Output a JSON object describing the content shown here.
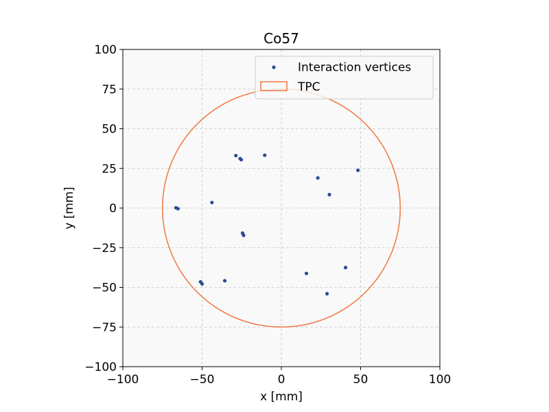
{
  "chart_data": {
    "type": "scatter",
    "title": "Co57",
    "xlabel": "x [mm]",
    "ylabel": "y [mm]",
    "xlim": [
      -100,
      100
    ],
    "ylim": [
      -100,
      100
    ],
    "xticks": [
      -100,
      -50,
      0,
      50,
      100
    ],
    "yticks": [
      -100,
      -75,
      -50,
      -25,
      0,
      25,
      50,
      75,
      100
    ],
    "xtick_labels": [
      "−100",
      "−50",
      "0",
      "50",
      "100"
    ],
    "ytick_labels": [
      "−100",
      "−75",
      "−50",
      "−25",
      "0",
      "25",
      "50",
      "75",
      "100"
    ],
    "grid": true,
    "legend_position": "top-right",
    "series": [
      {
        "name": "Interaction vertices",
        "kind": "scatter",
        "color": "#2e4a94",
        "points": [
          [
            -66.5,
            0.2
          ],
          [
            -65.2,
            -0.4
          ],
          [
            -43.8,
            3.5
          ],
          [
            -28.7,
            33.1
          ],
          [
            -26.0,
            31.2
          ],
          [
            -25.3,
            30.5
          ],
          [
            -10.5,
            33.3
          ],
          [
            23.0,
            19.0
          ],
          [
            30.3,
            8.5
          ],
          [
            48.3,
            23.8
          ],
          [
            -24.5,
            -15.8
          ],
          [
            -23.8,
            -17.2
          ],
          [
            -51.0,
            -46.5
          ],
          [
            -50.0,
            -47.8
          ],
          [
            -35.7,
            -45.8
          ],
          [
            15.8,
            -41.2
          ],
          [
            40.5,
            -37.5
          ],
          [
            28.8,
            -54.0
          ]
        ]
      },
      {
        "name": "TPC",
        "kind": "circle",
        "color": "#f07d4a",
        "center": [
          0,
          0
        ],
        "radius": 75
      }
    ]
  }
}
